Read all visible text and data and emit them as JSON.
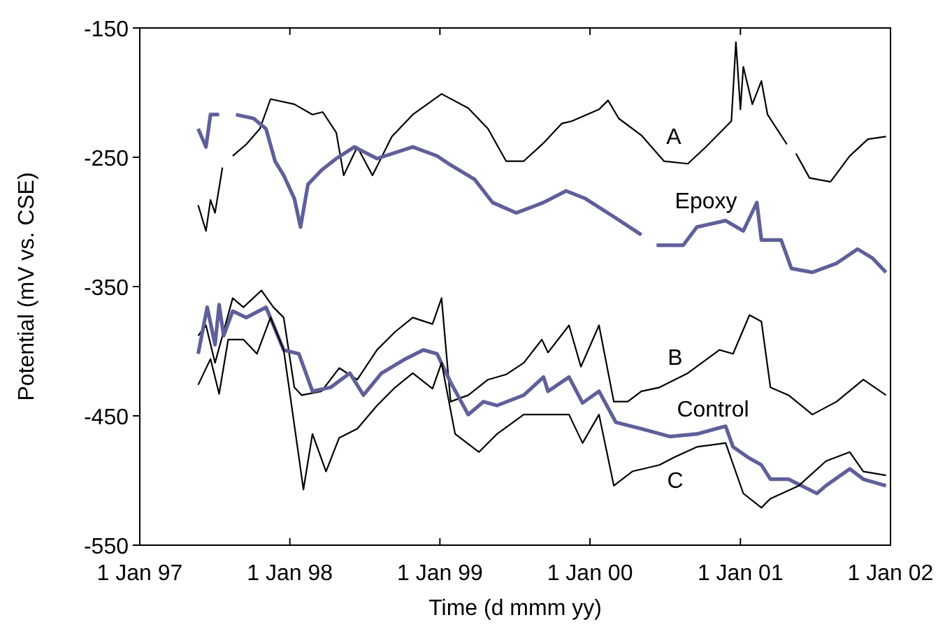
{
  "chart_data": {
    "type": "line",
    "xlabel": "Time (d mmm yy)",
    "ylabel": "Potential (mV vs. CSE)",
    "xlim": [
      "1997-01-01",
      "2002-01-01"
    ],
    "xticks": [
      {
        "value": "1997-01-01",
        "label": "1 Jan 97"
      },
      {
        "value": "1998-01-01",
        "label": "1 Jan 98"
      },
      {
        "value": "1999-01-01",
        "label": "1 Jan 99"
      },
      {
        "value": "2000-01-01",
        "label": "1 Jan 00"
      },
      {
        "value": "2001-01-01",
        "label": "1 Jan 01"
      },
      {
        "value": "2002-01-01",
        "label": "1 Jan 02"
      }
    ],
    "ylim": [
      -550,
      -150
    ],
    "yticks": [
      -550,
      -450,
      -350,
      -250,
      -150
    ],
    "grid": false,
    "marker": "none",
    "line_style": "solid",
    "series": [
      {
        "name": "A",
        "color": "#000000",
        "x": [
          "1997-05-23",
          "1997-06-11",
          "1997-06-22",
          "1997-07-03",
          "1997-07-21",
          "1997-08-01",
          "1997-08-15",
          "1997-09-17",
          "1997-10-20",
          "1997-11-15",
          "1998-01-12",
          "1998-02-25",
          "1998-03-22",
          "1998-04-24",
          "1998-05-12",
          "1998-06-14",
          "1998-07-21",
          "1998-09-06",
          "1998-10-27",
          "1999-01-05",
          "1999-03-11",
          "1999-04-28",
          "1999-06-11",
          "1999-07-24",
          "1999-09-10",
          "1999-10-24",
          "1999-11-18",
          "2000-01-23",
          "2000-02-14",
          "2000-03-11",
          "2000-05-05",
          "2000-06-29",
          "2000-08-26",
          "2000-10-09",
          "2000-12-10",
          "2000-12-21",
          "2001-01-01",
          "2001-01-08",
          "2001-01-30",
          "2001-02-21",
          "2001-03-08",
          "2001-04-24",
          "2001-05-05",
          "2001-05-16",
          "2001-06-18",
          "2001-08-08",
          "2001-09-24",
          "2001-11-07",
          "2001-12-21"
        ],
        "values": [
          -287,
          -307,
          -283,
          -293,
          -258,
          null,
          -249,
          -240,
          -228,
          -205,
          -209,
          -217,
          -215,
          -231,
          -264,
          -242,
          -264,
          -234,
          -217,
          -201,
          -212,
          -228,
          -253,
          -253,
          -239,
          -224,
          -222,
          -213,
          -206,
          -220,
          -233,
          -253,
          -255,
          -242,
          -222,
          -161,
          -213,
          -180,
          -209,
          -191,
          -217,
          -240,
          null,
          -247,
          -266,
          -269,
          -249,
          -236,
          -234
        ]
      },
      {
        "name": "Epoxy",
        "color": "#5f5f9a",
        "x": [
          "1997-05-23",
          "1997-06-11",
          "1997-06-22",
          "1997-07-13",
          "1997-07-28",
          "1997-08-23",
          "1997-10-05",
          "1997-11-04",
          "1997-11-26",
          "1997-12-17",
          "1998-01-12",
          "1998-01-27",
          "1998-02-14",
          "1998-03-19",
          "1998-04-24",
          "1998-06-07",
          "1998-08-01",
          "1998-10-27",
          "1998-12-25",
          "1999-01-27",
          "1999-03-26",
          "1999-05-09",
          "1999-07-06",
          "1999-09-10",
          "1999-11-04",
          "1999-12-21",
          "2000-02-28",
          "2000-05-05",
          "2000-05-27",
          "2000-06-11",
          "2000-08-15",
          "2000-09-17",
          "2000-11-26",
          "2001-01-08",
          "2001-02-10",
          "2001-02-21",
          "2001-04-10",
          "2001-05-05",
          "2001-06-25",
          "2001-08-23",
          "2001-10-13",
          "2001-11-18",
          "2001-12-21"
        ],
        "values": [
          -228,
          -242,
          -217,
          -217,
          null,
          -217,
          -220,
          -228,
          -253,
          -264,
          -282,
          -304,
          -271,
          -260,
          -251,
          -242,
          -251,
          -242,
          -249,
          -256,
          -267,
          -285,
          -293,
          -285,
          -276,
          -282,
          -296,
          -310,
          null,
          -318,
          -318,
          -304,
          -299,
          -307,
          -285,
          -314,
          -314,
          -336,
          -339,
          -332,
          -321,
          -328,
          -339
        ]
      },
      {
        "name": "B",
        "color": "#000000",
        "x": [
          "1997-05-23",
          "1997-06-11",
          "1997-07-03",
          "1997-08-15",
          "1997-09-10",
          "1997-10-24",
          "1997-11-22",
          "1997-12-17",
          "1998-01-12",
          "1998-01-30",
          "1998-03-19",
          "1998-05-01",
          "1998-06-14",
          "1998-08-01",
          "1998-09-14",
          "1998-10-27",
          "1998-12-14",
          "1999-01-05",
          "1999-01-27",
          "1999-03-11",
          "1999-04-28",
          "1999-06-11",
          "1999-07-24",
          "1999-09-06",
          "1999-09-21",
          "1999-11-11",
          "1999-12-10",
          "2000-01-23",
          "2000-02-28",
          "2000-04-02",
          "2000-05-05",
          "2000-06-18",
          "2000-08-26",
          "2000-11-11",
          "2000-12-14",
          "2001-01-23",
          "2001-02-21",
          "2001-03-15",
          "2001-04-28",
          "2001-06-25",
          "2001-08-23",
          "2001-10-27",
          "2001-12-21"
        ],
        "values": [
          -388,
          -380,
          -409,
          -359,
          -366,
          -353,
          -366,
          -374,
          -428,
          -434,
          -431,
          -413,
          -422,
          -399,
          -385,
          -374,
          -379,
          -359,
          -439,
          -434,
          -422,
          -418,
          -409,
          -391,
          -401,
          -380,
          -412,
          -380,
          -439,
          -439,
          -431,
          -428,
          -417,
          -399,
          -402,
          -372,
          -377,
          -428,
          -434,
          -449,
          -439,
          -422,
          -434
        ]
      },
      {
        "name": "Control",
        "color": "#5f5f9a",
        "x": [
          "1997-05-23",
          "1997-06-14",
          "1997-07-03",
          "1997-07-13",
          "1997-07-24",
          "1997-08-15",
          "1997-09-17",
          "1997-11-04",
          "1997-12-17",
          "1998-01-23",
          "1998-02-25",
          "1998-04-10",
          "1998-05-27",
          "1998-06-29",
          "1998-08-12",
          "1998-10-09",
          "1998-11-22",
          "1998-12-25",
          "1999-01-27",
          "1999-03-11",
          "1999-04-17",
          "1999-05-20",
          "1999-07-24",
          "1999-09-10",
          "1999-09-21",
          "1999-11-11",
          "1999-12-14",
          "2000-01-23",
          "2000-03-04",
          "2000-05-05",
          "2000-07-13",
          "2000-09-17",
          "2000-11-26",
          "2000-12-14",
          "2001-01-19",
          "2001-02-21",
          "2001-03-15",
          "2001-04-28",
          "2001-07-06",
          "2001-07-28",
          "2001-09-24",
          "2001-10-27",
          "2001-12-21"
        ],
        "values": [
          -402,
          -366,
          -395,
          -364,
          -388,
          -369,
          -374,
          -366,
          -399,
          -402,
          -431,
          -428,
          -417,
          -434,
          -417,
          -406,
          -399,
          -402,
          -424,
          -449,
          -439,
          -442,
          -434,
          -420,
          -431,
          -420,
          -440,
          -431,
          -455,
          -460,
          -466,
          -464,
          -458,
          -474,
          -482,
          -488,
          -499,
          -499,
          -510,
          -504,
          -491,
          -499,
          -504
        ]
      },
      {
        "name": "C",
        "color": "#000000",
        "x": [
          "1997-05-23",
          "1997-06-22",
          "1997-07-13",
          "1997-08-04",
          "1997-09-10",
          "1997-10-13",
          "1997-11-15",
          "1997-12-17",
          "1998-01-23",
          "1998-02-03",
          "1998-02-25",
          "1998-03-30",
          "1998-05-01",
          "1998-06-14",
          "1998-08-01",
          "1998-09-14",
          "1998-10-27",
          "1998-12-14",
          "1999-01-05",
          "1999-02-07",
          "1999-04-06",
          "1999-05-20",
          "1999-07-24",
          "1999-09-21",
          "1999-11-11",
          "1999-12-14",
          "2000-01-23",
          "2000-02-28",
          "2000-04-13",
          "2000-06-18",
          "2000-07-24",
          "2000-09-17",
          "2000-11-26",
          "2001-01-08",
          "2001-02-21",
          "2001-03-15",
          "2001-05-23",
          "2001-07-28",
          "2001-09-24",
          "2001-10-27",
          "2001-12-21"
        ],
        "values": [
          -426,
          -406,
          -433,
          -391,
          -391,
          -402,
          -374,
          -399,
          -482,
          -507,
          -464,
          -493,
          -467,
          -460,
          -442,
          -428,
          -417,
          -429,
          -409,
          -464,
          -478,
          -464,
          -449,
          -449,
          -449,
          -471,
          -449,
          -504,
          -493,
          -488,
          -482,
          -474,
          -471,
          -510,
          -521,
          -514,
          -504,
          -485,
          -478,
          -493,
          -496
        ]
      }
    ]
  }
}
